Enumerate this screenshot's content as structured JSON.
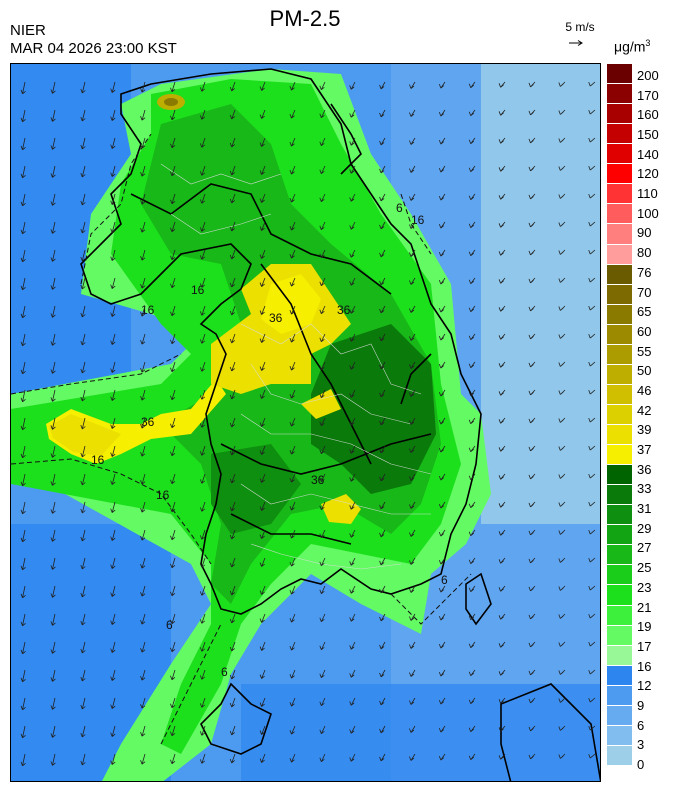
{
  "header": {
    "title": "PM-2.5",
    "agency": "NIER",
    "datetime": "MAR 04 2026 23:00 KST",
    "wind_reference": "5 m/s",
    "unit_base": "μg/m",
    "unit_exp": "3"
  },
  "legend": {
    "levels": [
      "200",
      "170",
      "160",
      "150",
      "140",
      "120",
      "110",
      "100",
      "90",
      "80",
      "76",
      "70",
      "65",
      "60",
      "55",
      "50",
      "46",
      "42",
      "39",
      "37",
      "36",
      "33",
      "31",
      "29",
      "27",
      "25",
      "23",
      "21",
      "19",
      "17",
      "16",
      "12",
      "9",
      "6",
      "3",
      "0"
    ],
    "colors": [
      "#6a0000",
      "#8b0000",
      "#a80000",
      "#c40000",
      "#e00000",
      "#ff0000",
      "#ff3333",
      "#ff5d5d",
      "#ff7f7f",
      "#ff9c9c",
      "#6b5b00",
      "#7d6a00",
      "#8a7a00",
      "#9c8a00",
      "#ad9c00",
      "#bdae00",
      "#cfbf00",
      "#ddd000",
      "#ece000",
      "#f6ef00",
      "#006400",
      "#0a7a0a",
      "#0f8f0f",
      "#12a412",
      "#17b817",
      "#1acd1a",
      "#1de01d",
      "#3cf03c",
      "#64fa64",
      "#98f898",
      "#2d86f0",
      "#4d9bf0",
      "#66aaf0",
      "#82bdf0",
      "#9dcfe8"
    ]
  },
  "map": {
    "contour_labels": [
      "16",
      "36",
      "36",
      "16",
      "36",
      "16",
      "16",
      "16",
      "6",
      "6",
      "6",
      "6",
      "36"
    ],
    "wind_vector_direction": "north-northeast to south-southwest"
  }
}
